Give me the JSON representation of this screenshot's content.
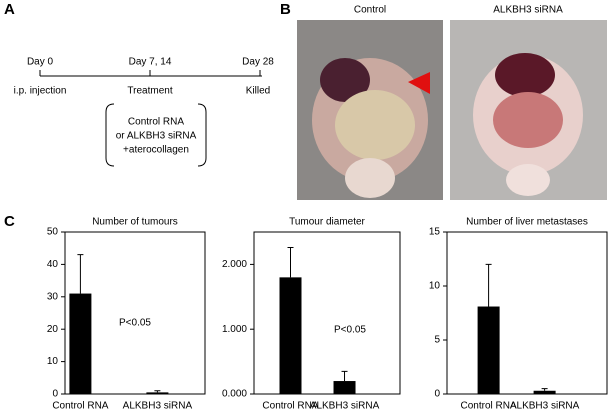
{
  "timeline": {
    "panel": "A",
    "days": [
      "Day 0",
      "Day 7, 14",
      "Day 28"
    ],
    "events": [
      "i.p. injection",
      "Treatment",
      "Killed"
    ],
    "treatment": [
      "Control RNA",
      "or ALKBH3 siRNA",
      "+aterocollagen"
    ]
  },
  "photos": {
    "panel": "B",
    "titles": [
      "Control",
      "ALKBH3 siRNA"
    ]
  },
  "panel_c": "C",
  "chart_data": [
    {
      "type": "bar",
      "title": "Number of tumours",
      "categories": [
        "Control RNA",
        "ALKBH3 siRNA"
      ],
      "values": [
        31,
        0.5
      ],
      "errors": [
        12,
        0.5
      ],
      "color": "#000000",
      "ylim": [
        0,
        50
      ],
      "yticks": [
        0,
        10,
        20,
        30,
        40,
        50
      ],
      "annotation": "P<0.05"
    },
    {
      "type": "bar",
      "title": "Tumour diameter",
      "categories": [
        "Control RNA",
        "ALKBH3 siRNA"
      ],
      "values": [
        1.8,
        0.2
      ],
      "errors": [
        0.46,
        0.15
      ],
      "color": "#000000",
      "ylim": [
        0,
        2.5
      ],
      "yticks": [
        {
          "value": 0,
          "label": "0.000"
        },
        {
          "value": 1,
          "label": "1.000"
        },
        {
          "value": 2,
          "label": "2.000"
        }
      ],
      "annotation": "P<0.05"
    },
    {
      "type": "bar",
      "title": "Number of liver metastases",
      "categories": [
        "Control RNA",
        "ALKBH3 siRNA"
      ],
      "values": [
        8.1,
        0.3
      ],
      "errors": [
        3.9,
        0.2
      ],
      "color": "#000000",
      "ylim": [
        0,
        15
      ],
      "yticks": [
        0,
        5,
        10,
        15
      ]
    }
  ]
}
